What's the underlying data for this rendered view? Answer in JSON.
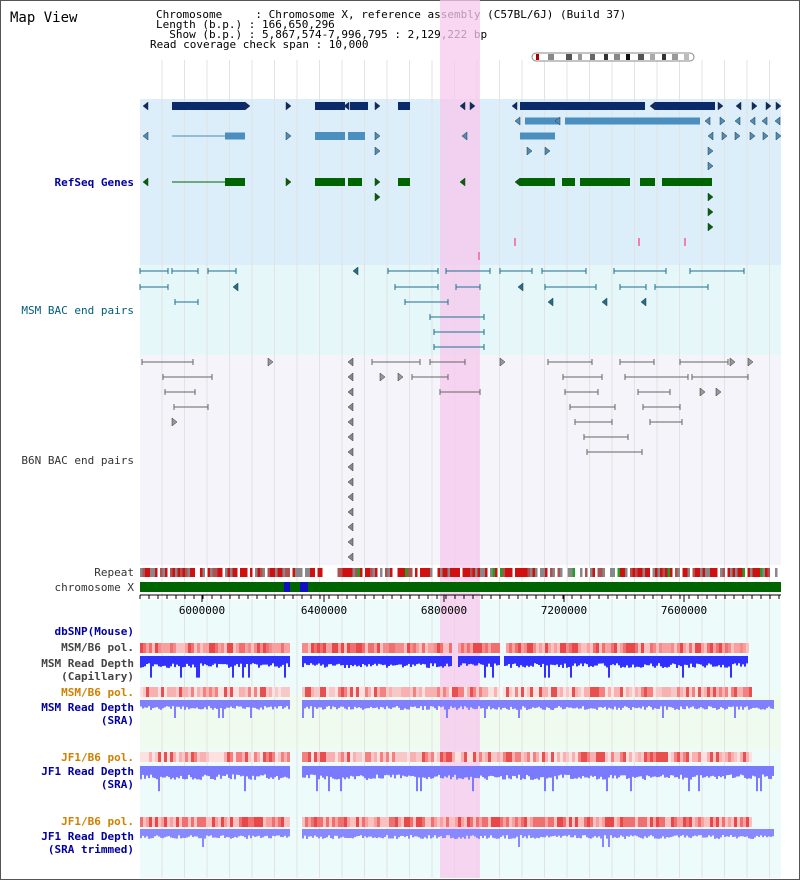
{
  "view_title": "Map View",
  "info": {
    "chromosome": "Chromosome     : Chromosome X, reference assembly (C57BL/6J) (Build 37)",
    "length": "Length (b.p.) : 166,650,296",
    "show": "  Show (b.p.) : 5,867,574-7,996,795 : 2,129,222 bp",
    "coverage": "Read coverage check span : 10,000"
  },
  "track_labels": {
    "refseq": "RefSeq Genes",
    "msm_bac": "MSM BAC end pairs",
    "b6n_bac": "B6N BAC end pairs",
    "repeat": "Repeat",
    "chromosome": "chromosome X",
    "dbsnp": "dbSNP(Mouse)",
    "msm_pol1": "MSM/B6 pol.",
    "msm_depth_cap": "MSM Read Depth\n(Capillary)",
    "msm_pol2": "MSM/B6 pol.",
    "msm_depth_sra": "MSM Read Depth\n(SRA)",
    "jf1_pol1": "JF1/B6 pol.",
    "jf1_depth_sra": "JF1 Read Depth\n(SRA)",
    "jf1_pol2": "JF1/B6 pol.",
    "jf1_depth_trim": "JF1 Read Depth\n(SRA trimmed)"
  },
  "axis_ticks": [
    "6000000",
    "6400000",
    "6800000",
    "7200000",
    "7600000"
  ],
  "colors": {
    "refseq_bg": "#dbeef9",
    "msm_bg": "#e6f7fa",
    "b6n_bg": "#f4f4fa",
    "highlight": "#f7c8ec",
    "gene_dark": "#0a2a6a",
    "gene_mid": "#4a8fbf",
    "gene_green": "#006400",
    "depth_blue": "#3030ff",
    "depth_light": "#7a7aff",
    "chrom_green": "#006400"
  }
}
